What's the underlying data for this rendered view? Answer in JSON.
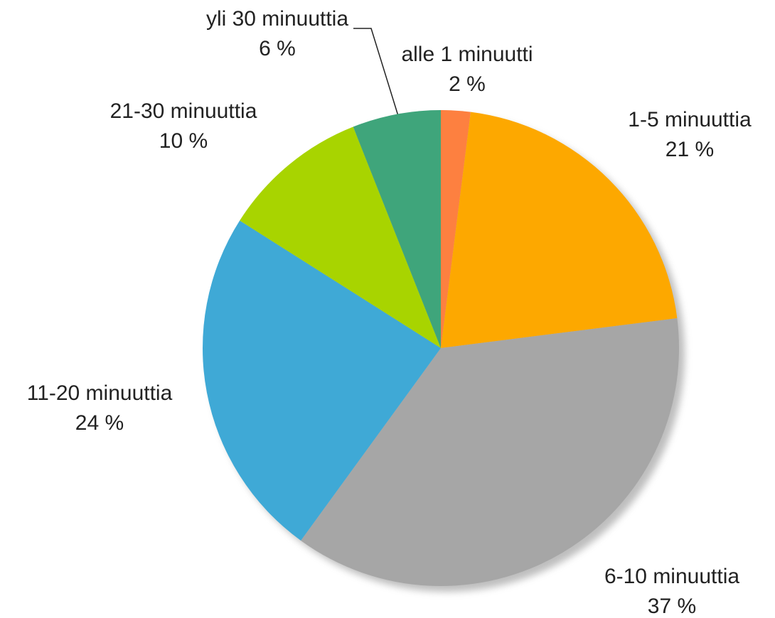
{
  "chart_data": {
    "type": "pie",
    "categories": [
      "alle 1 minuutti",
      "1-5 minuuttia",
      "6-10 minuuttia",
      "11-20 minuuttia",
      "21-30 minuuttia",
      "yli 30 minuuttia"
    ],
    "values": [
      2,
      21,
      37,
      24,
      10,
      6
    ],
    "value_labels": [
      "2 %",
      "21 %",
      "37 %",
      "24 %",
      "10 %",
      "6 %"
    ],
    "colors": [
      "#fd8040",
      "#fda800",
      "#a6a6a6",
      "#3fa9d6",
      "#a8d400",
      "#3fa57b"
    ]
  }
}
